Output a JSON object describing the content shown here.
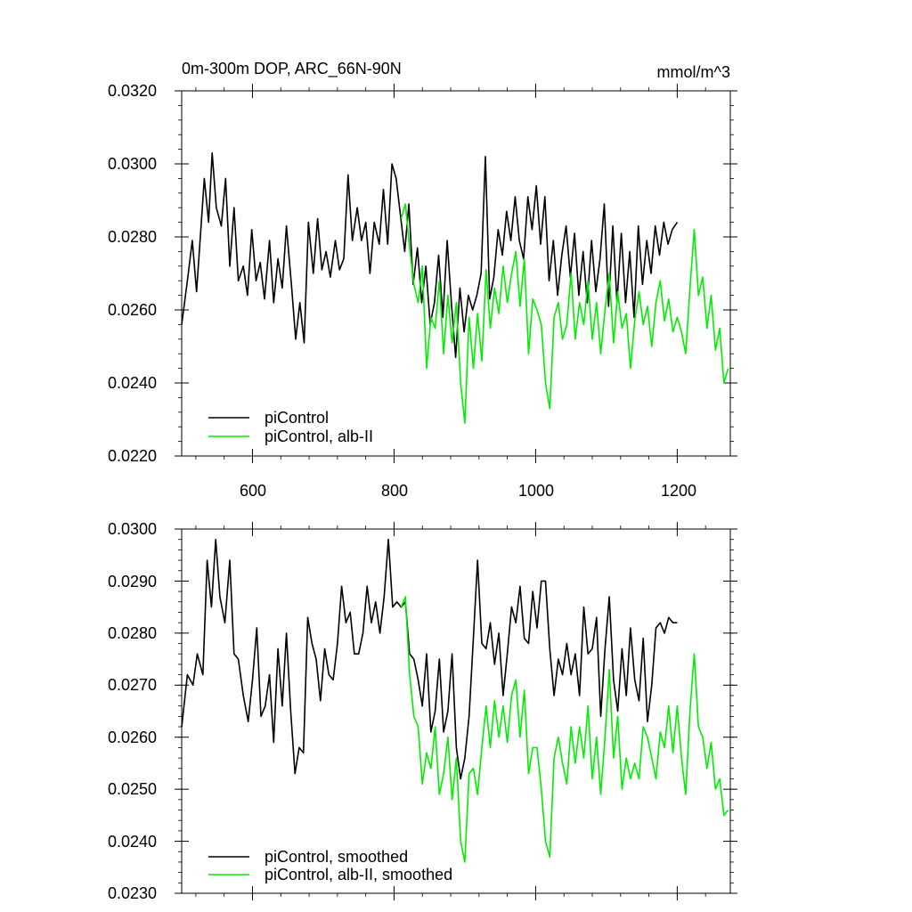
{
  "colors": {
    "piControl": "#000000",
    "alb": "#00ee00"
  },
  "chart_data": [
    {
      "type": "line",
      "title": "0m-300m DOP, ARC_66N-90N",
      "units": "mmol/m^3",
      "xlim": [
        500,
        1275
      ],
      "ylim": [
        0.022,
        0.032
      ],
      "yticks": [
        0.022,
        0.024,
        0.026,
        0.028,
        0.03,
        0.032
      ],
      "ytick_labels": [
        "0.0220",
        "0.0240",
        "0.0260",
        "0.0280",
        "0.0300",
        "0.0320"
      ],
      "xticks": [
        600,
        800,
        1000,
        1200
      ],
      "xtick_labels": [
        "600",
        "800",
        "1000",
        "1200"
      ],
      "legend_position": "bottom-left",
      "series": [
        {
          "name": "piControl",
          "color": "#000000",
          "x": [
            500,
            508,
            515,
            521,
            527,
            532,
            538,
            543,
            549,
            556,
            562,
            568,
            574,
            580,
            587,
            593,
            599,
            605,
            611,
            617,
            624,
            630,
            636,
            642,
            648,
            655,
            661,
            667,
            673,
            679,
            686,
            692,
            698,
            704,
            710,
            717,
            723,
            729,
            735,
            741,
            748,
            754,
            760,
            766,
            772,
            779,
            785,
            791,
            797,
            803,
            809,
            815,
            821,
            827,
            833,
            839,
            845,
            851,
            857,
            863,
            869,
            875,
            881,
            887,
            893,
            899,
            905,
            911,
            917,
            923,
            929,
            935,
            941,
            947,
            953,
            959,
            965,
            971,
            977,
            983,
            989,
            995,
            1001,
            1007,
            1013,
            1019,
            1025,
            1031,
            1037,
            1043,
            1049,
            1055,
            1061,
            1067,
            1073,
            1079,
            1085,
            1091,
            1097,
            1103,
            1109,
            1115,
            1121,
            1127,
            1133,
            1139,
            1145,
            1151,
            1157,
            1163,
            1169,
            1175,
            1181,
            1187,
            1193,
            1200
          ],
          "y": [
            0.0256,
            0.0268,
            0.0279,
            0.0265,
            0.0282,
            0.0296,
            0.0284,
            0.0303,
            0.0288,
            0.0283,
            0.0296,
            0.0272,
            0.0288,
            0.0268,
            0.0272,
            0.0264,
            0.0282,
            0.0268,
            0.0273,
            0.0263,
            0.0279,
            0.0262,
            0.0274,
            0.0266,
            0.0283,
            0.0267,
            0.0252,
            0.0262,
            0.0251,
            0.0284,
            0.027,
            0.0285,
            0.0271,
            0.0276,
            0.0269,
            0.0279,
            0.0271,
            0.0274,
            0.0297,
            0.0279,
            0.0288,
            0.0279,
            0.0284,
            0.027,
            0.0284,
            0.0278,
            0.0293,
            0.0278,
            0.03,
            0.0296,
            0.0286,
            0.0276,
            0.0289,
            0.0267,
            0.0277,
            0.0262,
            0.0272,
            0.0256,
            0.0262,
            0.0275,
            0.0258,
            0.0279,
            0.0262,
            0.0247,
            0.0266,
            0.0254,
            0.0264,
            0.026,
            0.0264,
            0.027,
            0.0302,
            0.0263,
            0.0269,
            0.0282,
            0.0275,
            0.0287,
            0.0279,
            0.0291,
            0.0279,
            0.0274,
            0.0291,
            0.0282,
            0.0294,
            0.0278,
            0.0291,
            0.0268,
            0.0279,
            0.0264,
            0.0275,
            0.0283,
            0.0269,
            0.0281,
            0.0264,
            0.0276,
            0.0262,
            0.0279,
            0.0265,
            0.0274,
            0.0289,
            0.0261,
            0.0283,
            0.0262,
            0.0281,
            0.0262,
            0.0276,
            0.0258,
            0.0283,
            0.0267,
            0.0279,
            0.027,
            0.0283,
            0.0275,
            0.0284,
            0.0278,
            0.0282,
            0.0284
          ]
        },
        {
          "name": "piControl, alb-II",
          "color": "#00ee00",
          "x": [
            810,
            816,
            822,
            828,
            834,
            840,
            846,
            852,
            858,
            864,
            870,
            876,
            882,
            888,
            894,
            900,
            906,
            912,
            918,
            924,
            930,
            936,
            942,
            948,
            954,
            960,
            966,
            972,
            978,
            984,
            990,
            996,
            1002,
            1008,
            1014,
            1020,
            1026,
            1032,
            1038,
            1044,
            1050,
            1056,
            1062,
            1068,
            1074,
            1080,
            1086,
            1092,
            1098,
            1104,
            1110,
            1116,
            1122,
            1128,
            1134,
            1140,
            1146,
            1152,
            1158,
            1164,
            1170,
            1176,
            1182,
            1188,
            1194,
            1200,
            1206,
            1212,
            1218,
            1224,
            1230,
            1236,
            1242,
            1248,
            1254,
            1260,
            1266,
            1272
          ],
          "y": [
            0.0285,
            0.0289,
            0.0277,
            0.0267,
            0.0262,
            0.0272,
            0.0244,
            0.0258,
            0.0255,
            0.0268,
            0.0248,
            0.0264,
            0.0251,
            0.0262,
            0.024,
            0.0229,
            0.0258,
            0.0244,
            0.0259,
            0.0246,
            0.0271,
            0.0255,
            0.0266,
            0.0259,
            0.0272,
            0.0262,
            0.027,
            0.0276,
            0.0261,
            0.0274,
            0.0248,
            0.0263,
            0.026,
            0.0256,
            0.024,
            0.0233,
            0.0258,
            0.0262,
            0.0252,
            0.0256,
            0.027,
            0.0252,
            0.0262,
            0.0256,
            0.0268,
            0.0252,
            0.0262,
            0.0248,
            0.026,
            0.027,
            0.0251,
            0.0265,
            0.0255,
            0.0259,
            0.0244,
            0.0257,
            0.0265,
            0.0256,
            0.0261,
            0.025,
            0.0262,
            0.0268,
            0.0257,
            0.0263,
            0.0254,
            0.0258,
            0.0254,
            0.0248,
            0.0266,
            0.0282,
            0.0264,
            0.0269,
            0.0255,
            0.0264,
            0.0249,
            0.0255,
            0.024,
            0.0244
          ]
        }
      ]
    },
    {
      "type": "line",
      "xlim": [
        500,
        1275
      ],
      "ylim": [
        0.023,
        0.03
      ],
      "yticks": [
        0.023,
        0.024,
        0.025,
        0.026,
        0.027,
        0.028,
        0.029,
        0.03
      ],
      "ytick_labels": [
        "0.0230",
        "0.0240",
        "0.0250",
        "0.0260",
        "0.0270",
        "0.0280",
        "0.0290",
        "0.0300"
      ],
      "xticks": [
        600,
        800,
        1000,
        1200
      ],
      "xtick_labels": [],
      "legend_position": "bottom-left",
      "series": [
        {
          "name": "piControl, smoothed",
          "color": "#000000",
          "x": [
            500,
            508,
            516,
            522,
            530,
            536,
            542,
            548,
            554,
            561,
            568,
            574,
            580,
            587,
            594,
            600,
            606,
            612,
            618,
            624,
            630,
            636,
            642,
            648,
            654,
            660,
            666,
            672,
            678,
            684,
            690,
            696,
            702,
            708,
            714,
            720,
            726,
            732,
            738,
            744,
            750,
            756,
            762,
            768,
            774,
            780,
            786,
            792,
            798,
            804,
            810,
            816,
            822,
            828,
            834,
            840,
            846,
            852,
            858,
            864,
            870,
            876,
            882,
            888,
            894,
            900,
            906,
            912,
            918,
            924,
            930,
            936,
            942,
            948,
            954,
            960,
            966,
            972,
            978,
            984,
            990,
            996,
            1002,
            1008,
            1014,
            1020,
            1026,
            1032,
            1038,
            1044,
            1050,
            1056,
            1062,
            1068,
            1074,
            1080,
            1086,
            1092,
            1098,
            1104,
            1110,
            1116,
            1122,
            1128,
            1134,
            1140,
            1146,
            1152,
            1158,
            1164,
            1170,
            1176,
            1182,
            1188,
            1194,
            1200
          ],
          "y": [
            0.0262,
            0.0272,
            0.027,
            0.0276,
            0.0272,
            0.0294,
            0.0285,
            0.0298,
            0.0287,
            0.0282,
            0.0294,
            0.0276,
            0.0275,
            0.0268,
            0.0263,
            0.0271,
            0.0281,
            0.0264,
            0.0266,
            0.0272,
            0.0259,
            0.0277,
            0.0266,
            0.028,
            0.0265,
            0.0253,
            0.0258,
            0.0257,
            0.0283,
            0.0278,
            0.0275,
            0.0267,
            0.0277,
            0.0272,
            0.0271,
            0.0278,
            0.0289,
            0.0282,
            0.0284,
            0.0276,
            0.0276,
            0.028,
            0.0289,
            0.0282,
            0.0286,
            0.028,
            0.0287,
            0.0298,
            0.0285,
            0.0286,
            0.0285,
            0.0286,
            0.0276,
            0.0275,
            0.0271,
            0.0266,
            0.0276,
            0.0261,
            0.0265,
            0.0275,
            0.0261,
            0.0265,
            0.0276,
            0.0258,
            0.0252,
            0.0256,
            0.0264,
            0.0279,
            0.0294,
            0.0278,
            0.0277,
            0.0282,
            0.0274,
            0.028,
            0.0268,
            0.0276,
            0.0285,
            0.0282,
            0.0289,
            0.0279,
            0.0278,
            0.0288,
            0.0281,
            0.029,
            0.029,
            0.0277,
            0.0268,
            0.0275,
            0.0272,
            0.0278,
            0.0272,
            0.0276,
            0.0268,
            0.0285,
            0.0276,
            0.0277,
            0.0283,
            0.0264,
            0.0277,
            0.0287,
            0.0271,
            0.0265,
            0.0277,
            0.0268,
            0.0281,
            0.0271,
            0.0267,
            0.0279,
            0.0263,
            0.027,
            0.0281,
            0.0282,
            0.028,
            0.0283,
            0.0282,
            0.0282
          ]
        },
        {
          "name": "piControl, alb-II, smoothed",
          "color": "#00ee00",
          "x": [
            810,
            816,
            822,
            828,
            834,
            840,
            846,
            852,
            858,
            864,
            870,
            876,
            882,
            888,
            894,
            900,
            906,
            912,
            918,
            924,
            930,
            936,
            942,
            948,
            954,
            960,
            966,
            972,
            978,
            984,
            990,
            996,
            1002,
            1008,
            1014,
            1020,
            1026,
            1032,
            1038,
            1044,
            1050,
            1056,
            1062,
            1068,
            1074,
            1080,
            1086,
            1092,
            1098,
            1104,
            1110,
            1116,
            1122,
            1128,
            1134,
            1140,
            1146,
            1152,
            1158,
            1164,
            1170,
            1176,
            1182,
            1188,
            1194,
            1200,
            1206,
            1212,
            1218,
            1224,
            1230,
            1236,
            1242,
            1248,
            1254,
            1260,
            1266,
            1272
          ],
          "y": [
            0.0285,
            0.0287,
            0.0272,
            0.0264,
            0.0262,
            0.0251,
            0.0257,
            0.0254,
            0.0262,
            0.0249,
            0.0253,
            0.026,
            0.0248,
            0.0256,
            0.024,
            0.0236,
            0.0253,
            0.0254,
            0.0249,
            0.0258,
            0.0266,
            0.0258,
            0.0267,
            0.026,
            0.0266,
            0.0259,
            0.0268,
            0.0271,
            0.026,
            0.0269,
            0.0253,
            0.0258,
            0.0258,
            0.025,
            0.024,
            0.0237,
            0.0256,
            0.026,
            0.0255,
            0.0251,
            0.0262,
            0.0255,
            0.0262,
            0.0256,
            0.0266,
            0.0252,
            0.026,
            0.0249,
            0.026,
            0.0273,
            0.0256,
            0.0264,
            0.025,
            0.0256,
            0.0252,
            0.0255,
            0.0252,
            0.0262,
            0.026,
            0.0256,
            0.0252,
            0.0261,
            0.0258,
            0.0266,
            0.0257,
            0.0266,
            0.0256,
            0.0249,
            0.0265,
            0.0276,
            0.0262,
            0.026,
            0.0254,
            0.0259,
            0.025,
            0.0252,
            0.0245,
            0.0246
          ]
        }
      ]
    }
  ]
}
